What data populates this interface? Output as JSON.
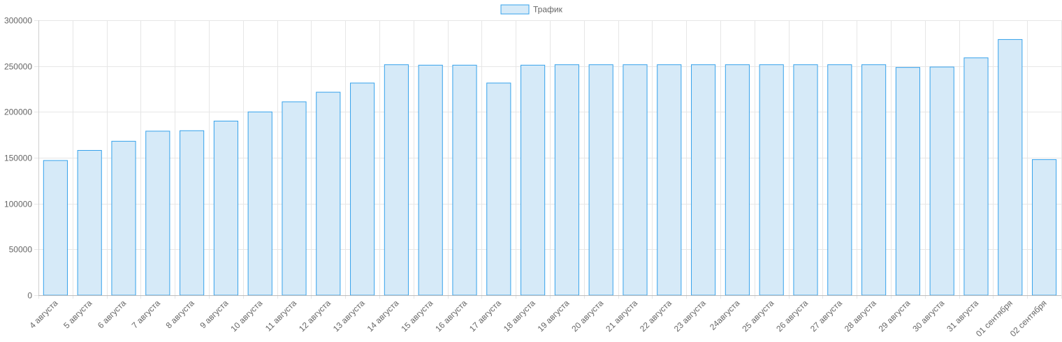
{
  "chart_data": {
    "type": "bar",
    "categories": [
      "4 августа",
      "5 августа",
      "6 августа",
      "7 августа",
      "8 августа",
      "9 августа",
      "10 августа",
      "11 августа",
      "12 августа",
      "13 августа",
      "14 августа",
      "15 августа",
      "16 августа",
      "17 августа",
      "18 августа",
      "19 августа",
      "20 августа",
      "21 августа",
      "22 августа",
      "23 августа",
      "24августа",
      "25 августа",
      "26 августа",
      "27 августа",
      "28 августа",
      "29 августа",
      "30 августа",
      "31 августа",
      "01 сентября",
      "02 сентября"
    ],
    "series": [
      {
        "name": "Трафик",
        "values": [
          147000,
          158000,
          168000,
          179000,
          179500,
          190000,
          200000,
          211000,
          221500,
          231500,
          251500,
          251000,
          251000,
          231500,
          251000,
          251500,
          251500,
          251500,
          251500,
          251500,
          251500,
          251500,
          251500,
          251500,
          251500,
          248500,
          249000,
          259000,
          279000,
          148000
        ]
      }
    ],
    "ylim": [
      0,
      300000
    ],
    "yticks": [
      0,
      50000,
      100000,
      150000,
      200000,
      250000,
      300000
    ],
    "grid": true,
    "legend": "top-center",
    "colors": {
      "bar_fill": "#d6eaf8",
      "bar_stroke": "#36a2eb",
      "grid": "#e6e6e6",
      "text": "#666666"
    }
  }
}
